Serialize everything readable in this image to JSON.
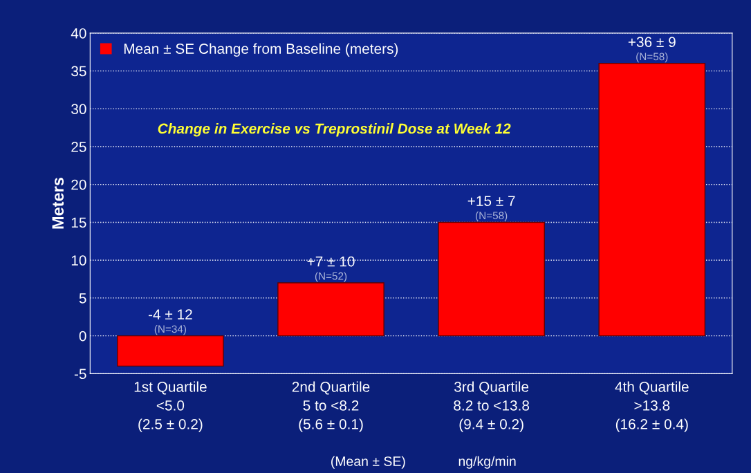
{
  "chart_data": {
    "type": "bar",
    "title": "Change in Exercise vs Treprostinil Dose at Week 12",
    "ylabel": "Meters",
    "categories": [
      "1st Quartile\n<5.0\n(2.5 ± 0.2)",
      "2nd Quartile\n5 to <8.2\n(5.6 ± 0.1)",
      "3rd Quartile\n8.2 to <13.8\n(9.4 ± 0.2)",
      "4th Quartile\n>13.8\n(16.2 ± 0.4)"
    ],
    "series": [
      {
        "name": "Mean ± SE Change from Baseline (meters)",
        "color": "#ff0000",
        "values": [
          -4,
          7,
          15,
          36
        ],
        "value_labels": [
          "-4 ± 12\n(N=34)",
          "+7 ± 10\n(N=52)",
          "+15 ± 7\n(N=58)",
          "+36 ± 9\n(N=58)"
        ]
      }
    ],
    "ylim": [
      -5,
      40
    ],
    "yticks": [
      -5,
      0,
      5,
      10,
      15,
      20,
      25,
      30,
      35,
      40
    ],
    "grid": "y",
    "legend": "top left",
    "annotations": [
      "(Mean ± SE)",
      "ng/kg/min"
    ]
  }
}
